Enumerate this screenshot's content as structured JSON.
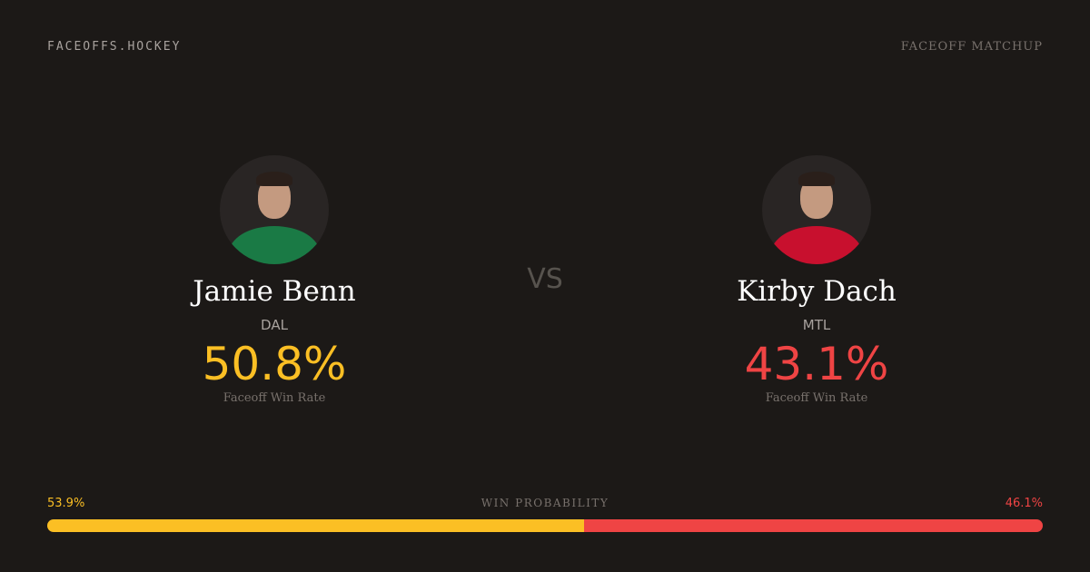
{
  "header": {
    "brand": "FACEOFFS.HOCKEY",
    "tag": "FACEOFF MATCHUP"
  },
  "vs": "VS",
  "players": [
    {
      "name": "Jamie Benn",
      "team": "DAL",
      "rate": "50.8%",
      "rate_label": "Faceoff Win Rate",
      "color": "#fbbf24",
      "jersey": "#1a7a45"
    },
    {
      "name": "Kirby Dach",
      "team": "MTL",
      "rate": "43.1%",
      "rate_label": "Faceoff Win Rate",
      "color": "#ef4444",
      "jersey": "#c8102e"
    }
  ],
  "win_probability": {
    "label": "WIN PROBABILITY",
    "left": "53.9%",
    "right": "46.1%",
    "left_value": 53.9,
    "right_value": 46.1
  }
}
